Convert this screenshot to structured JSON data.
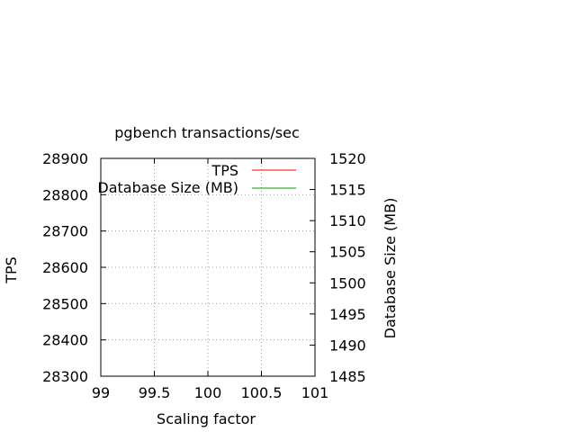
{
  "chart_data": {
    "type": "line",
    "title": "pgbench transactions/sec",
    "xlabel": "Scaling factor",
    "ylabel": "TPS",
    "y2label": "Database Size (MB)",
    "xlim": [
      99,
      101
    ],
    "ylim": [
      28300,
      28900
    ],
    "y2lim": [
      1485,
      1520
    ],
    "x_ticks": [
      99,
      99.5,
      100,
      100.5,
      101
    ],
    "x_tick_labels": [
      "99",
      "99.5",
      "100",
      "100.5",
      "101"
    ],
    "y_ticks": [
      28300,
      28400,
      28500,
      28600,
      28700,
      28800,
      28900
    ],
    "y_tick_labels": [
      "28300",
      "28400",
      "28500",
      "28600",
      "28700",
      "28800",
      "28900"
    ],
    "y2_ticks": [
      1485,
      1490,
      1495,
      1500,
      1505,
      1510,
      1515,
      1520
    ],
    "y2_tick_labels": [
      "1485",
      "1490",
      "1495",
      "1500",
      "1505",
      "1510",
      "1515",
      "1520"
    ],
    "grid": true,
    "legend_position": "top-right",
    "series": [
      {
        "name": "TPS",
        "color": "#ff0000",
        "axis": "y",
        "x": [],
        "values": []
      },
      {
        "name": "Database Size (MB)",
        "color": "#00a000",
        "axis": "y2",
        "x": [],
        "values": []
      }
    ]
  }
}
